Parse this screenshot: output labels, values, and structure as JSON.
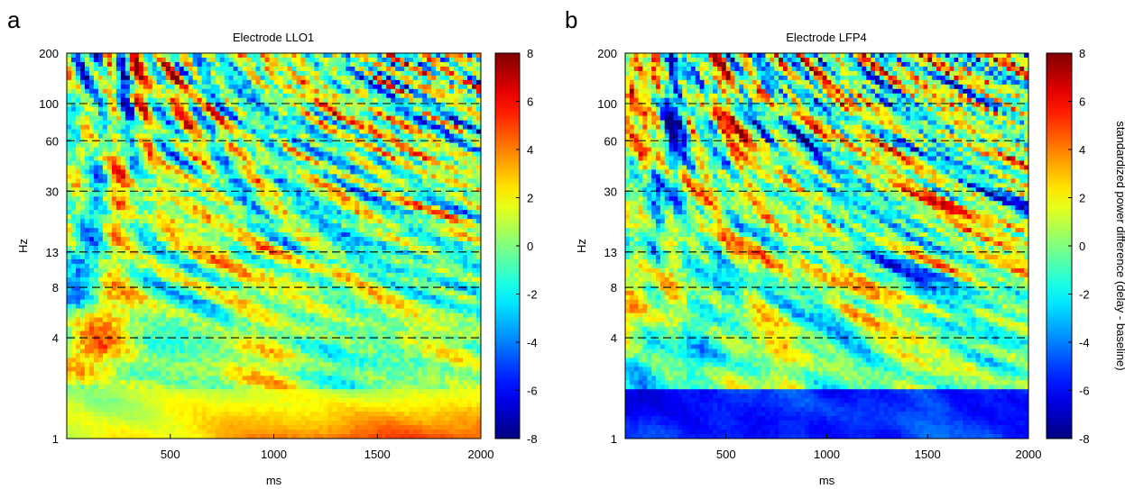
{
  "colors": {
    "colormap": "jet",
    "dashed_line": "#000000"
  },
  "chart_data": [
    {
      "type": "heatmap",
      "panel_letter": "a",
      "title": "Electrode LLO1",
      "xlabel": "ms",
      "ylabel": "Hz",
      "xlim": [
        0,
        2000
      ],
      "x_ticks": [
        "500",
        "1000",
        "1500",
        "2000"
      ],
      "x_tick_values": [
        500,
        1000,
        1500,
        2000
      ],
      "y_scale": "log",
      "ylim": [
        1,
        200
      ],
      "y_ticks": [
        "1",
        "4",
        "8",
        "13",
        "30",
        "60",
        "100",
        "200"
      ],
      "y_tick_values": [
        1,
        4,
        8,
        13,
        30,
        60,
        100,
        200
      ],
      "dashed_lines_hz": [
        4,
        8,
        13,
        30,
        60,
        100
      ],
      "colorbar": {
        "range": [
          -8,
          8
        ],
        "ticks": [
          "-8",
          "-6",
          "-4",
          "-2",
          "0",
          "2",
          "4",
          "6",
          "8"
        ],
        "label": ""
      },
      "seed": 7,
      "bias": [
        [
          0,
          0.6,
          1.6
        ],
        [
          400,
          0.8,
          2.2
        ],
        [
          1100,
          1.0,
          4.5
        ],
        [
          2000,
          1.2,
          5.5
        ]
      ]
    },
    {
      "type": "heatmap",
      "panel_letter": "b",
      "title": "Electrode LFP4",
      "xlabel": "ms",
      "ylabel": "Hz",
      "xlim": [
        0,
        2000
      ],
      "x_ticks": [
        "500",
        "1000",
        "1500",
        "2000"
      ],
      "x_tick_values": [
        500,
        1000,
        1500,
        2000
      ],
      "y_scale": "log",
      "ylim": [
        1,
        200
      ],
      "y_ticks": [
        "1",
        "4",
        "8",
        "13",
        "30",
        "60",
        "100",
        "200"
      ],
      "y_tick_values": [
        1,
        4,
        8,
        13,
        30,
        60,
        100,
        200
      ],
      "dashed_lines_hz": [
        4,
        8,
        13,
        30,
        60,
        100
      ],
      "colorbar": {
        "range": [
          -8,
          8
        ],
        "ticks": [
          "-8",
          "-6",
          "-4",
          "-2",
          "0",
          "2",
          "4",
          "6",
          "8"
        ],
        "label": "standardized power difference (delay - baseline)"
      },
      "seed": 19,
      "bias": [
        [
          0,
          -6.0,
          -6.0
        ],
        [
          2000,
          -6.0,
          -6.0
        ]
      ]
    }
  ]
}
